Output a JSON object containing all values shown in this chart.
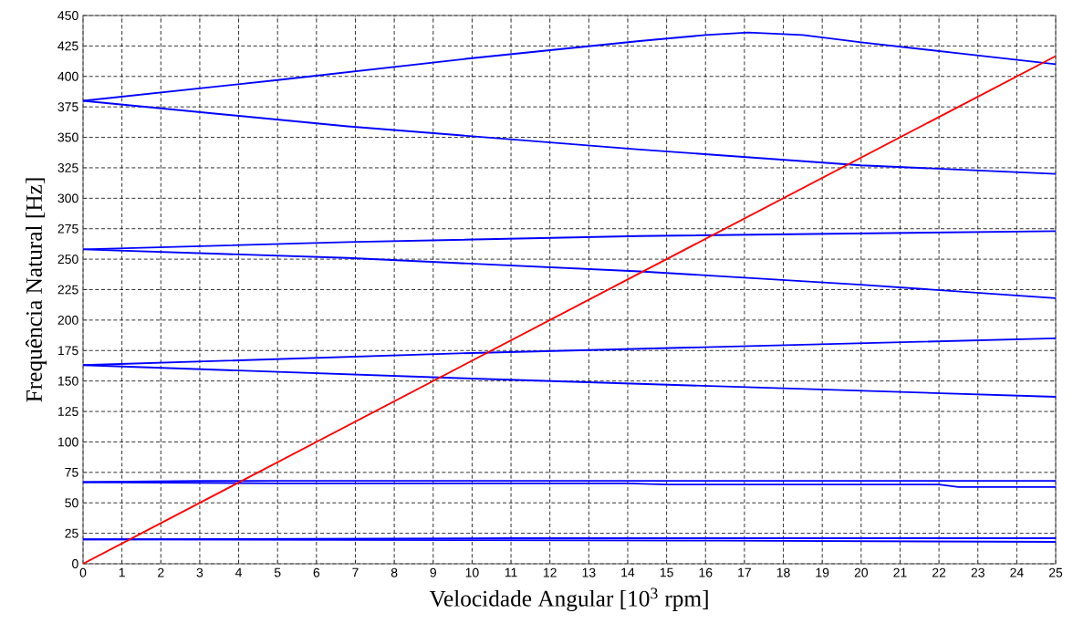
{
  "chart_data": {
    "type": "line",
    "xlabel": "Velocidade Angular [10$^{3}$ rpm]",
    "ylabel": "Frequência Natural [Hz]",
    "xlim": [
      0,
      25
    ],
    "ylim": [
      0,
      450
    ],
    "xticks": [
      0,
      1,
      2,
      3,
      4,
      5,
      6,
      7,
      8,
      9,
      10,
      11,
      12,
      13,
      14,
      15,
      16,
      17,
      18,
      19,
      20,
      21,
      22,
      23,
      24,
      25
    ],
    "yticks": [
      0,
      25,
      50,
      75,
      100,
      125,
      150,
      175,
      200,
      225,
      250,
      275,
      300,
      325,
      350,
      375,
      400,
      425,
      450
    ],
    "grid": true,
    "marker": "none",
    "line_style": "solid",
    "series": [
      {
        "color": "#0000ff",
        "x": [
          0,
          5,
          10,
          14.3,
          16,
          17.1,
          18.5,
          20,
          22.5,
          25
        ],
        "values": [
          380,
          397,
          415,
          429,
          434,
          436,
          434,
          428,
          419,
          410
        ]
      },
      {
        "color": "#0000ff",
        "x": [
          0,
          6.8,
          14.3,
          20,
          25
        ],
        "values": [
          380,
          359,
          340,
          327,
          320
        ]
      },
      {
        "color": "#0000ff",
        "x": [
          0,
          6.8,
          14.3,
          25
        ],
        "values": [
          258,
          264,
          269,
          273
        ]
      },
      {
        "color": "#0000ff",
        "x": [
          0,
          6.8,
          14.3,
          20,
          25
        ],
        "values": [
          258,
          251,
          240,
          229,
          218
        ]
      },
      {
        "color": "#0000ff",
        "x": [
          0,
          10,
          25
        ],
        "values": [
          163,
          173,
          185
        ]
      },
      {
        "color": "#0000ff",
        "x": [
          0,
          10,
          25
        ],
        "values": [
          163,
          152,
          137
        ]
      },
      {
        "color": "#0000ff",
        "x": [
          0,
          3,
          25
        ],
        "values": [
          67,
          68,
          68
        ]
      },
      {
        "color": "#0000ff",
        "x": [
          0,
          5,
          14,
          15,
          22,
          22.5,
          25
        ],
        "values": [
          67,
          66,
          66,
          65,
          65,
          63,
          63
        ]
      },
      {
        "color": "#0000ff",
        "x": [
          0,
          11,
          25
        ],
        "values": [
          20,
          21,
          21
        ]
      },
      {
        "color": "#0000ff",
        "x": [
          0,
          16.3,
          25
        ],
        "values": [
          20,
          19,
          18
        ]
      },
      {
        "color": "#ff0000",
        "x": [
          0,
          25
        ],
        "values": [
          0,
          416.7
        ]
      }
    ]
  }
}
